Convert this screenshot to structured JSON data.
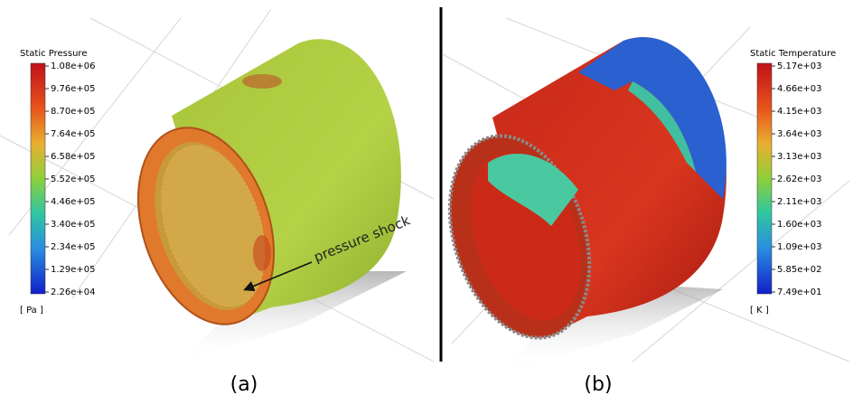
{
  "panels": [
    {
      "colorbar": {
        "title": "Static Pressure",
        "ticks": [
          "1.08e+06",
          "9.76e+05",
          "8.70e+05",
          "7.64e+05",
          "6.58e+05",
          "5.52e+05",
          "4.46e+05",
          "3.40e+05",
          "2.34e+05",
          "1.29e+05",
          "2.26e+04"
        ],
        "unit": "[ Pa ]"
      },
      "annotation": "pressure shock",
      "caption": "(a)"
    },
    {
      "colorbar": {
        "title": "Static Temperature",
        "ticks": [
          "5.17e+03",
          "4.66e+03",
          "4.15e+03",
          "3.64e+03",
          "3.13e+03",
          "2.62e+03",
          "2.11e+03",
          "1.60e+03",
          "1.09e+03",
          "5.85e+02",
          "7.49e+01"
        ],
        "unit": "[ K ]"
      },
      "caption": "(b)"
    }
  ]
}
